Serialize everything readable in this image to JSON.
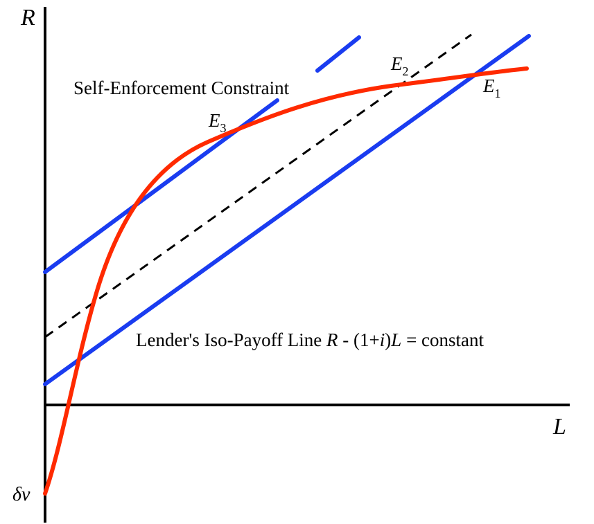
{
  "axes": {
    "y_label": "R",
    "x_label": "L",
    "origin_label": "δv"
  },
  "labels": {
    "constraint": "Self-Enforcement Constraint",
    "iso_prefix": "Lender's Iso-Payoff Line ",
    "iso_R": "R",
    "iso_mid": " - (1+",
    "iso_i": "i",
    "iso_close": ")",
    "iso_L": "L",
    "iso_suffix": " = constant"
  },
  "points": {
    "e1": {
      "letter": "E",
      "sub": "1"
    },
    "e2": {
      "letter": "E",
      "sub": "2"
    },
    "e3": {
      "letter": "E",
      "sub": "3"
    }
  },
  "colors": {
    "constraint_curve": "#ff2a00",
    "iso_lines": "#1a3cf0",
    "dashed_line": "#000000",
    "axes": "#000000"
  }
}
